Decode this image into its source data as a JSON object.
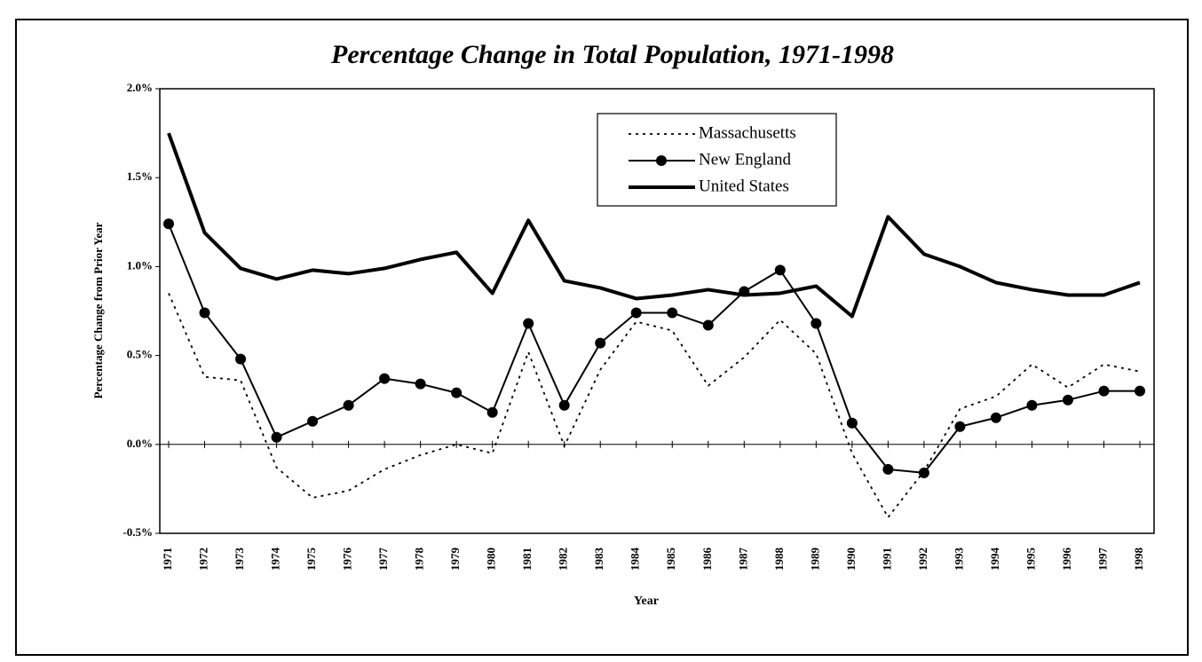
{
  "chart_data": {
    "type": "line",
    "title": "Percentage Change in Total Population, 1971-1998",
    "x_label": "Year",
    "y_label": "Percentage Change from Prior Year",
    "categories": [
      "1971",
      "1972",
      "1973",
      "1974",
      "1975",
      "1976",
      "1977",
      "1978",
      "1979",
      "1980",
      "1981",
      "1982",
      "1983",
      "1984",
      "1985",
      "1986",
      "1987",
      "1988",
      "1989",
      "1990",
      "1991",
      "1992",
      "1993",
      "1994",
      "1995",
      "1996",
      "1997",
      "1998"
    ],
    "series": [
      {
        "name": "Massachusetts",
        "color": "#000000",
        "line_style": "dotted",
        "values": [
          0.85,
          0.38,
          0.36,
          -0.13,
          -0.3,
          -0.26,
          -0.14,
          -0.06,
          0.0,
          -0.05,
          0.52,
          -0.01,
          0.42,
          0.69,
          0.64,
          0.33,
          0.49,
          0.7,
          0.51,
          -0.05,
          -0.41,
          -0.15,
          0.2,
          0.27,
          0.45,
          0.32,
          0.45,
          0.41
        ]
      },
      {
        "name": "New England",
        "color": "#000000",
        "line_style": "markers",
        "values": [
          1.24,
          0.74,
          0.48,
          0.04,
          0.13,
          0.22,
          0.37,
          0.34,
          0.29,
          0.18,
          0.68,
          0.22,
          0.57,
          0.74,
          0.74,
          0.67,
          0.86,
          0.98,
          0.68,
          0.12,
          -0.14,
          -0.16,
          0.1,
          0.15,
          0.22,
          0.25,
          0.3,
          0.3
        ]
      },
      {
        "name": "United States",
        "color": "#000000",
        "line_style": "thick",
        "values": [
          1.75,
          1.19,
          0.99,
          0.93,
          0.98,
          0.96,
          0.99,
          1.04,
          1.08,
          0.85,
          1.26,
          0.92,
          0.88,
          0.82,
          0.84,
          0.87,
          0.84,
          0.85,
          0.89,
          0.72,
          1.28,
          1.07,
          1.0,
          0.91,
          0.87,
          0.84,
          0.84,
          0.91
        ]
      }
    ],
    "ylim": [
      -0.5,
      2.0
    ],
    "yticks": [
      {
        "value": -0.5,
        "label": "-0.5%"
      },
      {
        "value": 0.0,
        "label": "0.0%"
      },
      {
        "value": 0.5,
        "label": "0.5%"
      },
      {
        "value": 1.0,
        "label": "1.0%"
      },
      {
        "value": 1.5,
        "label": "1.5%"
      },
      {
        "value": 2.0,
        "label": "2.0%"
      }
    ],
    "legend": "top-center"
  }
}
